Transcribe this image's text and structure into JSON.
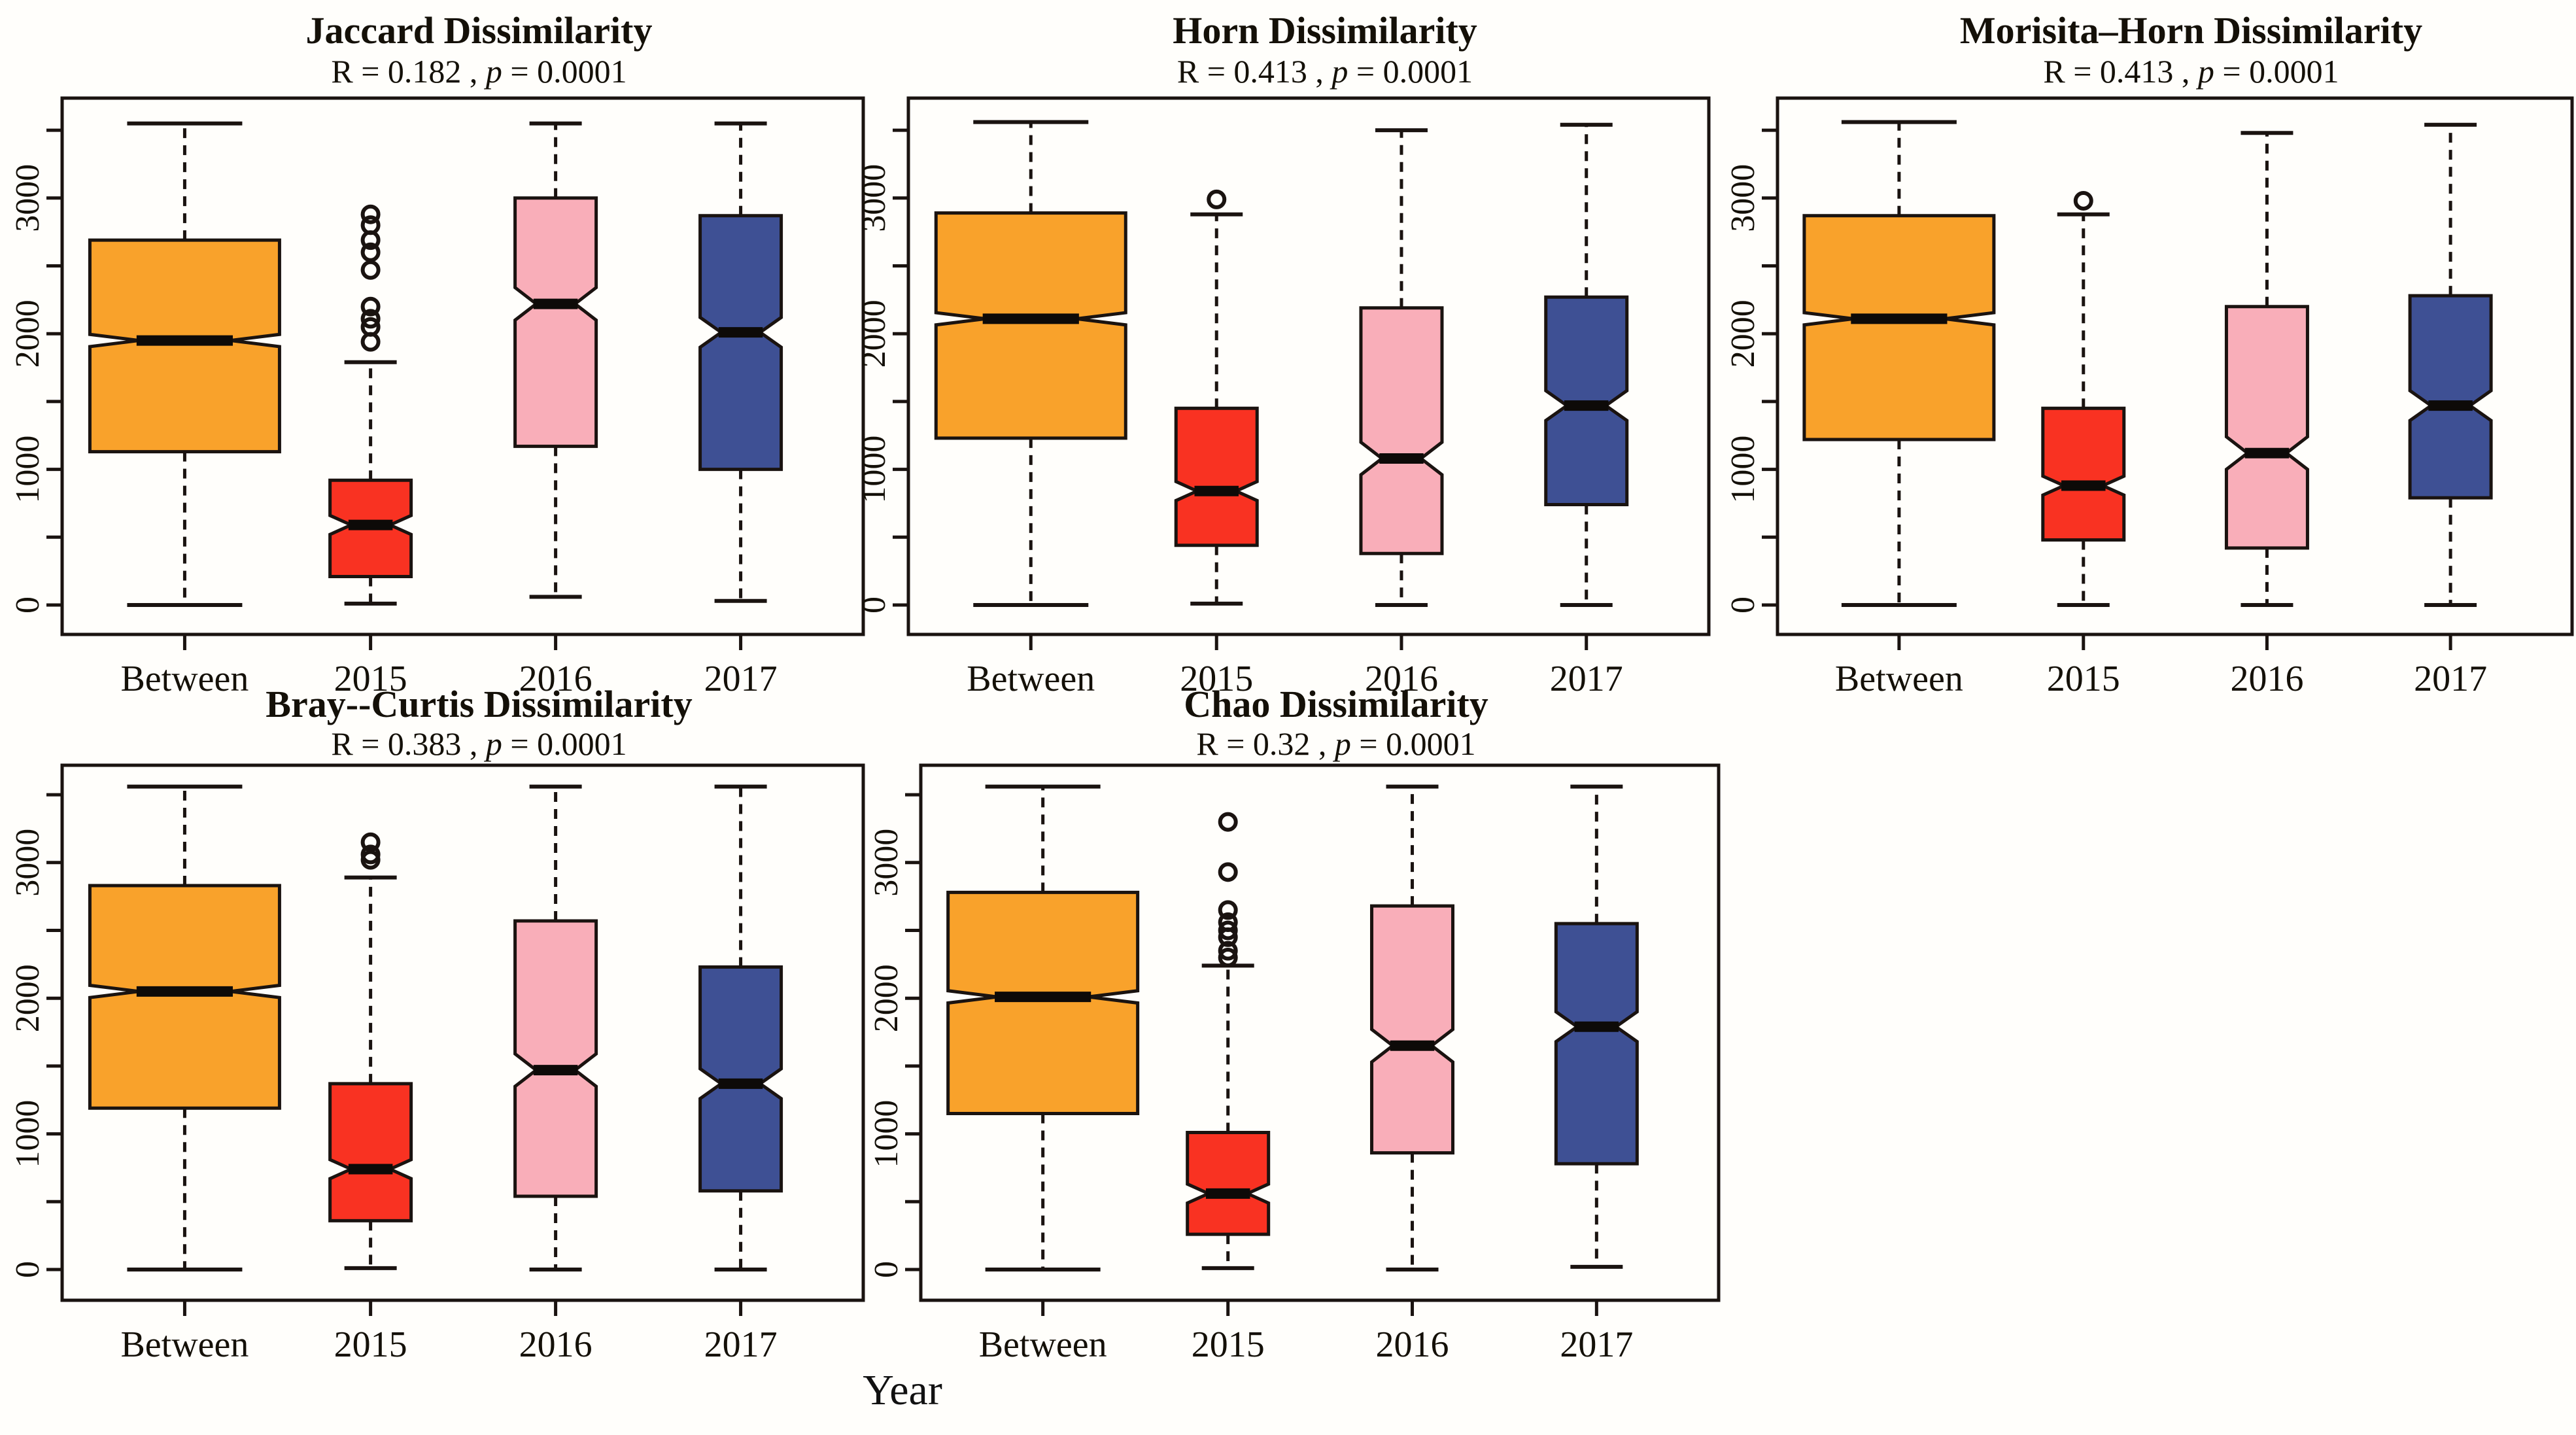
{
  "figure": {
    "background": "#fffefb",
    "ink": "#1a1310",
    "median_color": "#0d0a08"
  },
  "xlabel": "Year",
  "categories": [
    "Between",
    "2015",
    "2016",
    "2017"
  ],
  "group_colors": {
    "Between": "#F9A22B",
    "2015": "#F93222",
    "2016": "#F9AEB9",
    "2017": "#3E5094"
  },
  "y_axis": {
    "tick_values": [
      0,
      500,
      1000,
      1500,
      2000,
      2500,
      3000,
      3500
    ],
    "labeled_ticks": [
      0,
      1000,
      2000,
      3000
    ],
    "range_shown": [
      -200,
      3730
    ]
  },
  "chart_data": [
    {
      "type": "boxplot",
      "slug": "jaccard",
      "title": "Jaccard Dissimilarity",
      "stats": {
        "left": "R =  0.182 ,  ",
        "p": "p",
        "right": " =  0.0001"
      },
      "categories": [
        "Between",
        "2015",
        "2016",
        "2017"
      ],
      "series": [
        {
          "name": "Between",
          "color": "#F9A22B",
          "low": 0,
          "q1": 1130,
          "median": 1950,
          "q3": 2690,
          "high": 3550,
          "notch": 45,
          "outliers": []
        },
        {
          "name": "2015",
          "color": "#F93222",
          "low": 10,
          "q1": 210,
          "median": 590,
          "q3": 920,
          "high": 1790,
          "notch": 70,
          "outliers": [
            2880,
            2800,
            2690,
            2600,
            2470,
            2200,
            2110,
            2050,
            1940
          ]
        },
        {
          "name": "2016",
          "color": "#F9AEB9",
          "low": 60,
          "q1": 1170,
          "median": 2220,
          "q3": 3000,
          "high": 3550,
          "notch": 120,
          "outliers": []
        },
        {
          "name": "2017",
          "color": "#3E5094",
          "low": 30,
          "q1": 1000,
          "median": 2010,
          "q3": 2870,
          "high": 3550,
          "notch": 110,
          "outliers": []
        }
      ]
    },
    {
      "type": "boxplot",
      "slug": "horn",
      "title": "Horn Dissimilarity",
      "stats": {
        "left": "R =  0.413 ,  ",
        "p": "p",
        "right": " = 0.0001"
      },
      "categories": [
        "Between",
        "2015",
        "2016",
        "2017"
      ],
      "series": [
        {
          "name": "Between",
          "color": "#F9A22B",
          "low": 0,
          "q1": 1230,
          "median": 2110,
          "q3": 2890,
          "high": 3560,
          "notch": 45,
          "outliers": []
        },
        {
          "name": "2015",
          "color": "#F93222",
          "low": 10,
          "q1": 440,
          "median": 840,
          "q3": 1450,
          "high": 2880,
          "notch": 70,
          "outliers": [
            2990
          ]
        },
        {
          "name": "2016",
          "color": "#F9AEB9",
          "low": 0,
          "q1": 380,
          "median": 1080,
          "q3": 2190,
          "high": 3500,
          "notch": 120,
          "outliers": []
        },
        {
          "name": "2017",
          "color": "#3E5094",
          "low": 0,
          "q1": 740,
          "median": 1470,
          "q3": 2270,
          "high": 3540,
          "notch": 110,
          "outliers": []
        }
      ]
    },
    {
      "type": "boxplot",
      "slug": "morisita-horn",
      "title": "Morisita–Horn Dissimilarity",
      "stats": {
        "left": "R =  0.413 ,  ",
        "p": "p",
        "right": " =  0.0001"
      },
      "categories": [
        "Between",
        "2015",
        "2016",
        "2017"
      ],
      "series": [
        {
          "name": "Between",
          "color": "#F9A22B",
          "low": 0,
          "q1": 1220,
          "median": 2110,
          "q3": 2870,
          "high": 3560,
          "notch": 45,
          "outliers": []
        },
        {
          "name": "2015",
          "color": "#F93222",
          "low": 0,
          "q1": 480,
          "median": 880,
          "q3": 1450,
          "high": 2880,
          "notch": 70,
          "outliers": [
            2980
          ]
        },
        {
          "name": "2016",
          "color": "#F9AEB9",
          "low": 0,
          "q1": 420,
          "median": 1120,
          "q3": 2200,
          "high": 3480,
          "notch": 120,
          "outliers": []
        },
        {
          "name": "2017",
          "color": "#3E5094",
          "low": 0,
          "q1": 790,
          "median": 1470,
          "q3": 2280,
          "high": 3540,
          "notch": 110,
          "outliers": []
        }
      ]
    },
    {
      "type": "boxplot",
      "slug": "bray-curtis",
      "title": "Bray--Curtis Dissimilarity",
      "stats": {
        "left": "R =  0.383 ,  ",
        "p": "p",
        "right": " = 0.0001"
      },
      "categories": [
        "Between",
        "2015",
        "2016",
        "2017"
      ],
      "series": [
        {
          "name": "Between",
          "color": "#F9A22B",
          "low": 0,
          "q1": 1190,
          "median": 2050,
          "q3": 2830,
          "high": 3560,
          "notch": 45,
          "outliers": []
        },
        {
          "name": "2015",
          "color": "#F93222",
          "low": 10,
          "q1": 360,
          "median": 740,
          "q3": 1370,
          "high": 2890,
          "notch": 70,
          "outliers": [
            3150,
            3060,
            3020
          ]
        },
        {
          "name": "2016",
          "color": "#F9AEB9",
          "low": 0,
          "q1": 540,
          "median": 1470,
          "q3": 2570,
          "high": 3560,
          "notch": 120,
          "outliers": []
        },
        {
          "name": "2017",
          "color": "#3E5094",
          "low": 0,
          "q1": 580,
          "median": 1370,
          "q3": 2230,
          "high": 3560,
          "notch": 110,
          "outliers": []
        }
      ]
    },
    {
      "type": "boxplot",
      "slug": "chao",
      "title": "Chao Dissimilarity",
      "stats": {
        "left": "R =  0.32 ,  ",
        "p": "p",
        "right": " = 0.0001"
      },
      "categories": [
        "Between",
        "2015",
        "2016",
        "2017"
      ],
      "series": [
        {
          "name": "Between",
          "color": "#F9A22B",
          "low": 0,
          "q1": 1150,
          "median": 2010,
          "q3": 2780,
          "high": 3560,
          "notch": 45,
          "outliers": []
        },
        {
          "name": "2015",
          "color": "#F93222",
          "low": 10,
          "q1": 260,
          "median": 560,
          "q3": 1010,
          "high": 2240,
          "notch": 70,
          "outliers": [
            3300,
            2930,
            2650,
            2560,
            2500,
            2450,
            2350,
            2300
          ]
        },
        {
          "name": "2016",
          "color": "#F9AEB9",
          "low": 0,
          "q1": 860,
          "median": 1650,
          "q3": 2680,
          "high": 3560,
          "notch": 120,
          "outliers": []
        },
        {
          "name": "2017",
          "color": "#3E5094",
          "low": 20,
          "q1": 780,
          "median": 1790,
          "q3": 2550,
          "high": 3560,
          "notch": 110,
          "outliers": []
        }
      ]
    }
  ]
}
